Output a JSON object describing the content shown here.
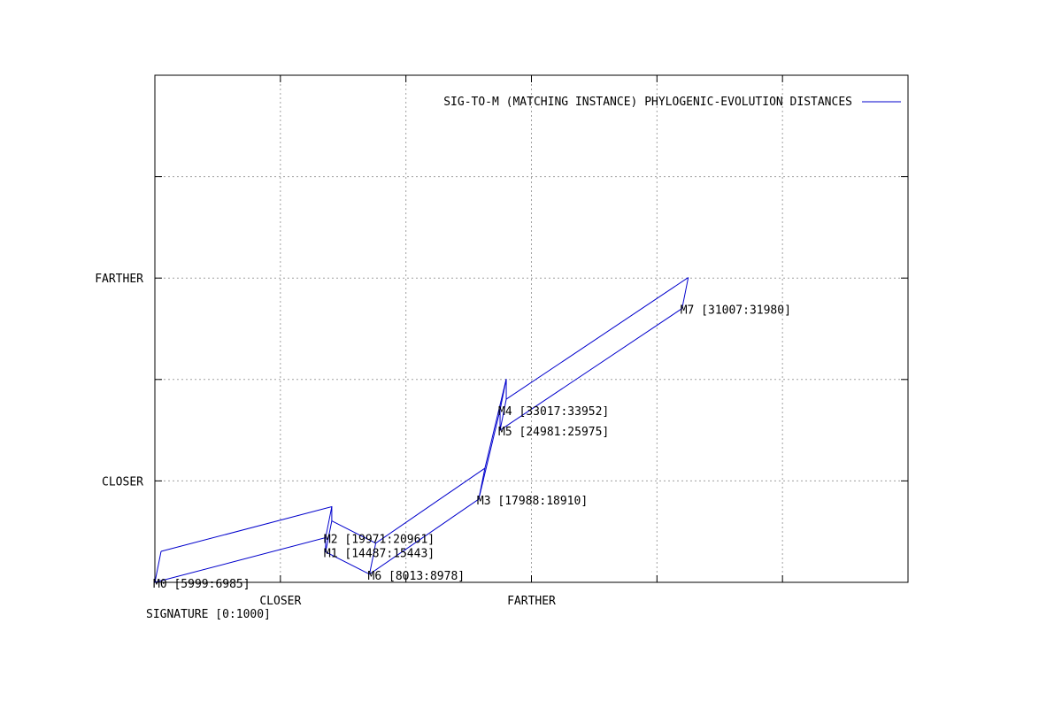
{
  "chart_data": {
    "type": "line",
    "title": "",
    "xlabel": "SIGNATURE [0:1000]",
    "ylabel": "",
    "x_ticks": [
      "CLOSER",
      "FARTHER"
    ],
    "y_ticks": [
      "CLOSER",
      "FARTHER"
    ],
    "grid": true,
    "legend_placement": "top-right",
    "series": [
      {
        "name": "SIG-TO-M (MATCHING INSTANCE) PHYLOGENIC-EVOLUTION DISTANCES",
        "color": "#0000cc",
        "points": [
          {
            "label": "M0 [5999:6985]",
            "x": 0.0,
            "y": 0.0
          },
          {
            "label": "M2 [19971:20961]",
            "x": 1.36,
            "y": 0.22
          },
          {
            "label": "M1 [14487:15443]",
            "x": 1.36,
            "y": 0.15
          },
          {
            "label": "M6 [8013:8978]",
            "x": 1.71,
            "y": 0.04
          },
          {
            "label": "M3 [17988:18910]",
            "x": 2.58,
            "y": 0.41
          },
          {
            "label": "M4 [33017:33952]",
            "x": 2.75,
            "y": 0.85
          },
          {
            "label": "M5 [24981:25975]",
            "x": 2.75,
            "y": 0.75
          },
          {
            "label": "M7 [31007:31980]",
            "x": 4.2,
            "y": 1.35
          }
        ]
      }
    ]
  }
}
